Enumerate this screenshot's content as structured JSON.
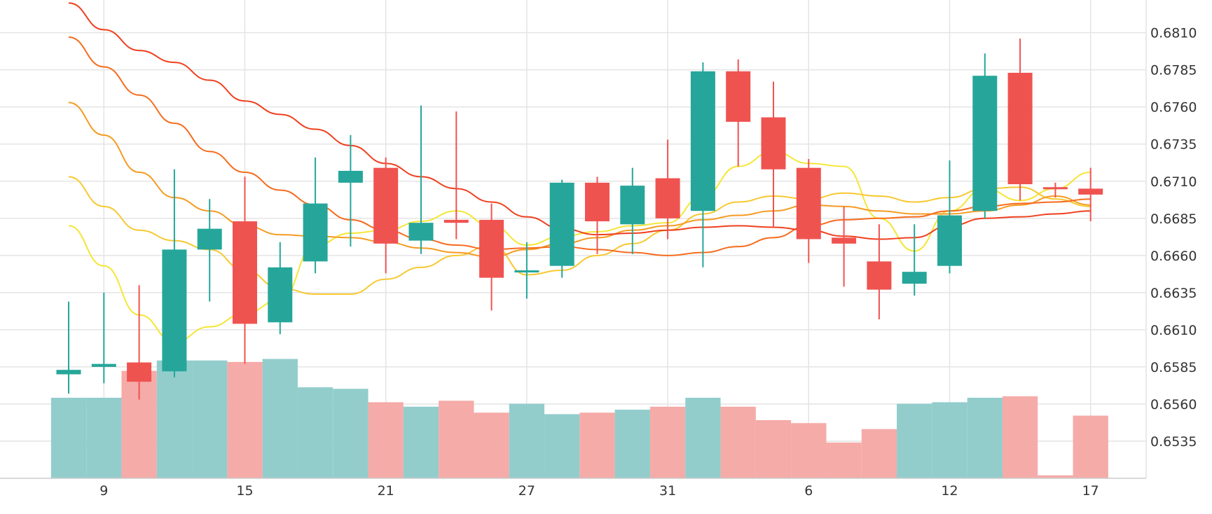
{
  "chart_data": {
    "type": "candlestick",
    "x_tick_labels": [
      {
        "label": "9",
        "index": 1
      },
      {
        "label": "15",
        "index": 5
      },
      {
        "label": "21",
        "index": 9
      },
      {
        "label": "27",
        "index": 13
      },
      {
        "label": "31",
        "index": 17
      },
      {
        "label": "6",
        "index": 21
      },
      {
        "label": "12",
        "index": 25
      },
      {
        "label": "17",
        "index": 29
      }
    ],
    "y_ticks": [
      "0.6535",
      "0.6560",
      "0.6585",
      "0.6610",
      "0.6635",
      "0.6660",
      "0.6685",
      "0.6710",
      "0.6735",
      "0.6760",
      "0.6785",
      "0.6810"
    ],
    "ylim": [
      0.651,
      0.6832
    ],
    "grid": true,
    "up_color": "#26a69a",
    "down_color": "#ef5350",
    "volume_up_color": "#92cdcc",
    "volume_down_color": "#f5aba8",
    "candles": [
      {
        "o": 0.658,
        "h": 0.6629,
        "l": 0.6567,
        "c": 0.6583
      },
      {
        "o": 0.6585,
        "h": 0.6635,
        "l": 0.6574,
        "c": 0.6587
      },
      {
        "o": 0.6588,
        "h": 0.664,
        "l": 0.6563,
        "c": 0.6575
      },
      {
        "o": 0.6582,
        "h": 0.6718,
        "l": 0.6578,
        "c": 0.6664
      },
      {
        "o": 0.6664,
        "h": 0.6698,
        "l": 0.6629,
        "c": 0.6678
      },
      {
        "o": 0.6683,
        "h": 0.6713,
        "l": 0.6587,
        "c": 0.6614
      },
      {
        "o": 0.6615,
        "h": 0.6669,
        "l": 0.6607,
        "c": 0.6652
      },
      {
        "o": 0.6656,
        "h": 0.6726,
        "l": 0.6648,
        "c": 0.6695
      },
      {
        "o": 0.6709,
        "h": 0.6741,
        "l": 0.6666,
        "c": 0.6717
      },
      {
        "o": 0.6719,
        "h": 0.6726,
        "l": 0.6648,
        "c": 0.6668
      },
      {
        "o": 0.667,
        "h": 0.6761,
        "l": 0.6661,
        "c": 0.6682
      },
      {
        "o": 0.6684,
        "h": 0.6757,
        "l": 0.6671,
        "c": 0.6682
      },
      {
        "o": 0.6684,
        "h": 0.6695,
        "l": 0.6623,
        "c": 0.6645
      },
      {
        "o": 0.665,
        "h": 0.6669,
        "l": 0.6631,
        "c": 0.665
      },
      {
        "o": 0.6653,
        "h": 0.6711,
        "l": 0.6645,
        "c": 0.6709
      },
      {
        "o": 0.6709,
        "h": 0.6713,
        "l": 0.6661,
        "c": 0.6683
      },
      {
        "o": 0.6681,
        "h": 0.6719,
        "l": 0.6661,
        "c": 0.6707
      },
      {
        "o": 0.6712,
        "h": 0.6738,
        "l": 0.6671,
        "c": 0.6685
      },
      {
        "o": 0.669,
        "h": 0.679,
        "l": 0.6652,
        "c": 0.6784
      },
      {
        "o": 0.6784,
        "h": 0.6792,
        "l": 0.672,
        "c": 0.675
      },
      {
        "o": 0.6753,
        "h": 0.6777,
        "l": 0.6679,
        "c": 0.6718
      },
      {
        "o": 0.6719,
        "h": 0.6725,
        "l": 0.6655,
        "c": 0.6671
      },
      {
        "o": 0.6672,
        "h": 0.6693,
        "l": 0.6639,
        "c": 0.6668
      },
      {
        "o": 0.6656,
        "h": 0.6681,
        "l": 0.6617,
        "c": 0.6637
      },
      {
        "o": 0.6641,
        "h": 0.6681,
        "l": 0.6633,
        "c": 0.6649
      },
      {
        "o": 0.6653,
        "h": 0.6724,
        "l": 0.6648,
        "c": 0.6687
      },
      {
        "o": 0.669,
        "h": 0.6796,
        "l": 0.6685,
        "c": 0.6781
      },
      {
        "o": 0.6783,
        "h": 0.6806,
        "l": 0.6697,
        "c": 0.6708
      },
      {
        "o": 0.6706,
        "h": 0.6709,
        "l": 0.6699,
        "c": 0.6705
      },
      {
        "o": 0.6705,
        "h": 0.6719,
        "l": 0.6683,
        "c": 0.6701
      }
    ],
    "volume_ratio": [
      0.54,
      0.54,
      0.72,
      0.79,
      0.79,
      0.78,
      0.8,
      0.61,
      0.6,
      0.51,
      0.48,
      0.52,
      0.44,
      0.5,
      0.43,
      0.44,
      0.46,
      0.48,
      0.54,
      0.48,
      0.39,
      0.37,
      0.24,
      0.33,
      0.5,
      0.51,
      0.54,
      0.55,
      0.02,
      0.42
    ],
    "moving_averages": [
      {
        "color": "#f5e635",
        "values": [
          0.668,
          0.6653,
          0.662,
          0.6602,
          0.6612,
          0.6621,
          0.663,
          0.6667,
          0.6675,
          0.6677,
          0.6683,
          0.669,
          0.668,
          0.6667,
          0.6673,
          0.6676,
          0.668,
          0.6682,
          0.67,
          0.672,
          0.673,
          0.6722,
          0.672,
          0.6685,
          0.6663,
          0.669,
          0.6705,
          0.6697,
          0.6705,
          0.6716
        ]
      },
      {
        "color": "#f7c831",
        "values": [
          0.6713,
          0.6693,
          0.6677,
          0.667,
          0.6664,
          0.665,
          0.6638,
          0.6634,
          0.6634,
          0.6644,
          0.6652,
          0.666,
          0.6667,
          0.6647,
          0.665,
          0.666,
          0.6668,
          0.6677,
          0.6688,
          0.6696,
          0.67,
          0.6698,
          0.6702,
          0.67,
          0.6696,
          0.6699,
          0.6705,
          0.6706,
          0.6698,
          0.6693
        ]
      },
      {
        "color": "#f59b22",
        "values": [
          0.6763,
          0.6741,
          0.6716,
          0.6699,
          0.669,
          0.668,
          0.6674,
          0.6673,
          0.6672,
          0.6669,
          0.6665,
          0.6662,
          0.6659,
          0.6664,
          0.6668,
          0.6672,
          0.6677,
          0.668,
          0.6684,
          0.6687,
          0.669,
          0.6694,
          0.6693,
          0.669,
          0.6688,
          0.6688,
          0.669,
          0.6694,
          0.67,
          0.6694
        ]
      },
      {
        "color": "#f56c1e",
        "values": [
          0.6807,
          0.6787,
          0.6768,
          0.6749,
          0.673,
          0.6716,
          0.6704,
          0.6694,
          0.6684,
          0.6677,
          0.6671,
          0.6667,
          0.6664,
          0.6665,
          0.6666,
          0.6664,
          0.6662,
          0.666,
          0.6662,
          0.6666,
          0.6672,
          0.668,
          0.6684,
          0.6685,
          0.6686,
          0.669,
          0.6693,
          0.6695,
          0.6696,
          0.6698
        ]
      },
      {
        "color": "#ef3f1e",
        "values": [
          0.683,
          0.6812,
          0.6798,
          0.679,
          0.6778,
          0.6764,
          0.6755,
          0.6745,
          0.6734,
          0.6722,
          0.6713,
          0.6705,
          0.6696,
          0.6686,
          0.6678,
          0.6674,
          0.6675,
          0.6677,
          0.6679,
          0.668,
          0.6679,
          0.6677,
          0.6673,
          0.6671,
          0.6672,
          0.668,
          0.6685,
          0.6686,
          0.6688,
          0.669
        ]
      }
    ]
  }
}
